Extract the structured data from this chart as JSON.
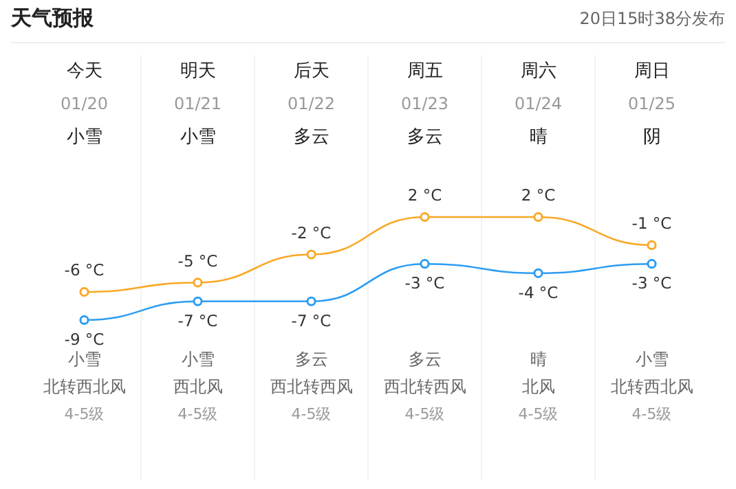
{
  "chart_data": {
    "type": "line",
    "title": "天气预报",
    "subtitle": "20日15时38分发布",
    "categories": [
      "今天",
      "明天",
      "后天",
      "周五",
      "周六",
      "周日"
    ],
    "series": [
      {
        "color": "#f9a825",
        "values": [
          -6,
          -5,
          -2,
          2,
          2,
          -1
        ],
        "value_labels": [
          "-6 °C",
          "-5 °C",
          "-2 °C",
          "2 °C",
          "2 °C",
          "-1 °C"
        ]
      },
      {
        "color": "#2b9cf2",
        "values": [
          -9,
          -7,
          -7,
          -3,
          -4,
          -3
        ],
        "value_labels": [
          "-9 °C",
          "-7 °C",
          "-7 °C",
          "-3 °C",
          "-4 °C",
          "-3 °C"
        ]
      }
    ],
    "marker": "circle",
    "annotations": [
      "01/20",
      "01/21",
      "01/22",
      "01/23",
      "01/24",
      "01/25",
      "小雪",
      "小雪",
      "多云",
      "多云",
      "晴",
      "阴",
      "小雪",
      "小雪",
      "多云",
      "多云",
      "晴",
      "小雪",
      "北转西北风",
      "西北风",
      "西北转西风",
      "西北转西风",
      "北风",
      "北转西北风",
      "4-5级",
      "4-5级",
      "4-5级",
      "4-5级",
      "4-5级",
      "4-5级"
    ]
  }
}
